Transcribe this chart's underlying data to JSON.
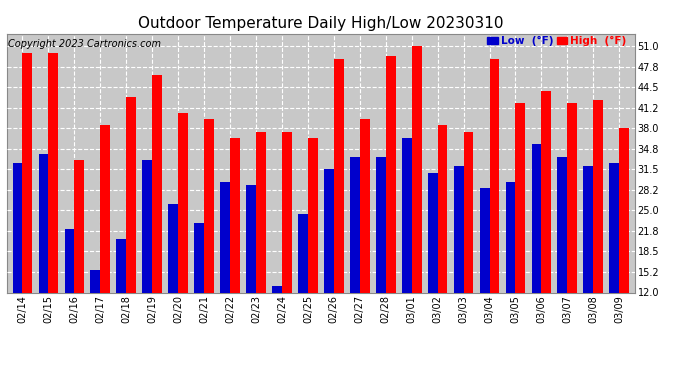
{
  "title": "Outdoor Temperature Daily High/Low 20230310",
  "copyright": "Copyright 2023 Cartronics.com",
  "legend_low_label": "Low  (°F)",
  "legend_high_label": "High  (°F)",
  "dates": [
    "02/14",
    "02/15",
    "02/16",
    "02/17",
    "02/18",
    "02/19",
    "02/20",
    "02/21",
    "02/22",
    "02/23",
    "02/24",
    "02/25",
    "02/26",
    "02/27",
    "02/28",
    "03/01",
    "03/02",
    "03/03",
    "03/04",
    "03/05",
    "03/06",
    "03/07",
    "03/08",
    "03/09"
  ],
  "highs": [
    50.0,
    50.0,
    33.0,
    38.5,
    43.0,
    46.5,
    40.5,
    39.5,
    36.5,
    37.5,
    37.5,
    36.5,
    49.0,
    39.5,
    49.5,
    51.0,
    38.5,
    37.5,
    49.0,
    42.0,
    44.0,
    42.0,
    42.5,
    38.0
  ],
  "lows": [
    32.5,
    34.0,
    22.0,
    15.5,
    20.5,
    33.0,
    26.0,
    23.0,
    29.5,
    29.0,
    13.0,
    24.5,
    31.5,
    33.5,
    33.5,
    36.5,
    31.0,
    32.0,
    28.5,
    29.5,
    35.5,
    33.5,
    32.0,
    32.5
  ],
  "ylim": [
    12.0,
    53.0
  ],
  "yticks": [
    12.0,
    15.2,
    18.5,
    21.8,
    25.0,
    28.2,
    31.5,
    34.8,
    38.0,
    41.2,
    44.5,
    47.8,
    51.0
  ],
  "bar_width": 0.38,
  "high_color": "#ff0000",
  "low_color": "#0000cc",
  "bg_color": "#ffffff",
  "plot_bg_color": "#c8c8c8",
  "grid_color": "#ffffff",
  "title_fontsize": 11,
  "tick_fontsize": 7,
  "copyright_fontsize": 7
}
